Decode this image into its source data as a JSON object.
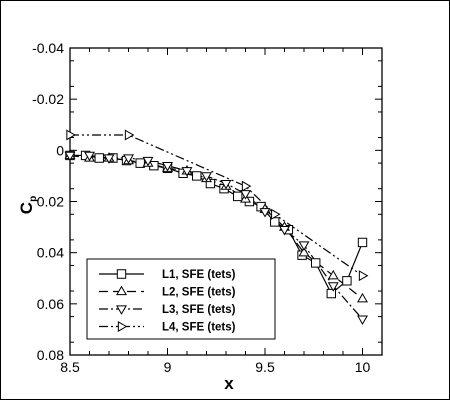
{
  "chart_data": {
    "type": "line",
    "xlabel": "x",
    "ylabel": "C",
    "ylabel_sub": "p",
    "xlim": [
      8.5,
      10.1
    ],
    "ylim": [
      -0.04,
      0.08
    ],
    "y_inverted": true,
    "xticks": [
      8.5,
      9,
      9.5,
      10
    ],
    "xtick_labels": [
      "8.5",
      "9",
      "9.5",
      "10"
    ],
    "yticks": [
      -0.04,
      -0.02,
      0,
      0.02,
      0.04,
      0.06,
      0.08
    ],
    "ytick_labels": [
      "-0.04",
      "-0.02",
      "0",
      "0.02",
      "0.04",
      "0.06",
      "0.08"
    ],
    "grid": false,
    "legend_position": "bottom-left",
    "series": [
      {
        "name": "L1, SFE (tets)",
        "marker": "square",
        "line": "solid",
        "x": [
          8.5,
          8.58,
          8.65,
          8.72,
          8.79,
          8.86,
          8.93,
          9.0,
          9.08,
          9.15,
          9.22,
          9.29,
          9.36,
          9.42,
          9.48,
          9.55,
          9.62,
          9.69,
          9.76,
          9.84,
          9.92,
          10.0
        ],
        "y": [
          0.002,
          0.002,
          0.003,
          0.003,
          0.004,
          0.005,
          0.006,
          0.007,
          0.009,
          0.01,
          0.013,
          0.015,
          0.018,
          0.02,
          0.022,
          0.028,
          0.031,
          0.041,
          0.044,
          0.056,
          0.051,
          0.036
        ]
      },
      {
        "name": "L2, SFE (tets)",
        "marker": "triangle-up",
        "line": "dashed",
        "x": [
          8.5,
          8.6,
          8.7,
          8.8,
          8.9,
          9.0,
          9.1,
          9.2,
          9.3,
          9.4,
          9.5,
          9.6,
          9.7,
          9.85,
          10.0
        ],
        "y": [
          0.002,
          0.003,
          0.003,
          0.004,
          0.005,
          0.007,
          0.008,
          0.011,
          0.014,
          0.019,
          0.023,
          0.03,
          0.04,
          0.049,
          0.058
        ]
      },
      {
        "name": "L3, SFE (tets)",
        "marker": "triangle-down",
        "line": "dash-dot",
        "x": [
          8.5,
          8.6,
          8.7,
          8.8,
          8.9,
          9.0,
          9.1,
          9.2,
          9.3,
          9.4,
          9.5,
          9.6,
          9.7,
          9.85,
          10.0
        ],
        "y": [
          0.002,
          0.002,
          0.003,
          0.003,
          0.004,
          0.006,
          0.008,
          0.01,
          0.013,
          0.017,
          0.024,
          0.031,
          0.037,
          0.053,
          0.066
        ]
      },
      {
        "name": "L4, SFE (tets)",
        "marker": "triangle-right",
        "line": "dash-dot-dot",
        "x": [
          8.5,
          8.8,
          9.4,
          9.55,
          10.0
        ],
        "y": [
          -0.006,
          -0.006,
          0.014,
          0.025,
          0.049
        ]
      }
    ]
  }
}
